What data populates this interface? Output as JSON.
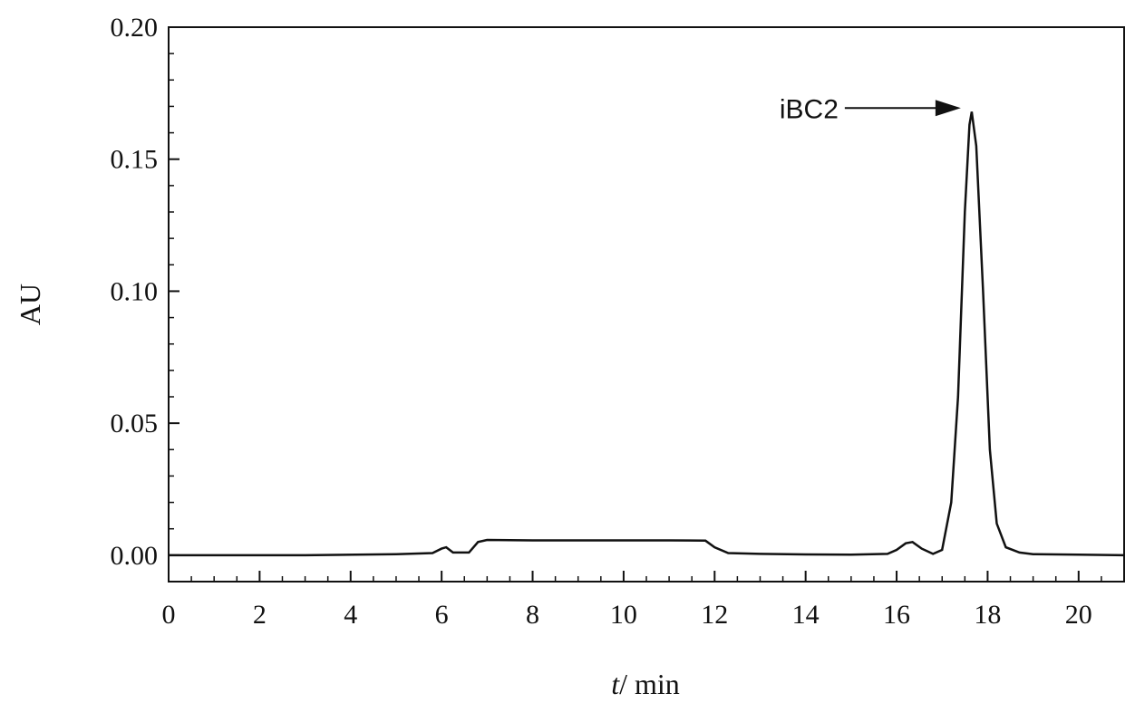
{
  "chart_data": {
    "type": "line",
    "title": "",
    "xlabel_italic": "t",
    "xlabel_rest": "/ min",
    "ylabel": "AU",
    "xlim": [
      0,
      21
    ],
    "ylim": [
      -0.01,
      0.2
    ],
    "x_ticks": [
      "0",
      "2",
      "4",
      "6",
      "8",
      "10",
      "12",
      "14",
      "16",
      "18",
      "20"
    ],
    "y_ticks": [
      "0.00",
      "0.05",
      "0.10",
      "0.15",
      "0.20"
    ],
    "grid": false,
    "legend": "none",
    "series": [
      {
        "points": [
          [
            0,
            0.0
          ],
          [
            3,
            0.0
          ],
          [
            5,
            0.0004
          ],
          [
            5.8,
            0.0008
          ],
          [
            6.0,
            0.0025
          ],
          [
            6.1,
            0.003
          ],
          [
            6.25,
            0.001
          ],
          [
            6.6,
            0.001
          ],
          [
            6.8,
            0.005
          ],
          [
            7.0,
            0.0058
          ],
          [
            8,
            0.0056
          ],
          [
            9,
            0.0056
          ],
          [
            10,
            0.0056
          ],
          [
            11,
            0.0056
          ],
          [
            11.8,
            0.0055
          ],
          [
            12.0,
            0.003
          ],
          [
            12.3,
            0.0008
          ],
          [
            13,
            0.0005
          ],
          [
            14,
            0.0003
          ],
          [
            15,
            0.0002
          ],
          [
            15.8,
            0.0005
          ],
          [
            16.0,
            0.002
          ],
          [
            16.2,
            0.0045
          ],
          [
            16.35,
            0.005
          ],
          [
            16.55,
            0.0025
          ],
          [
            16.8,
            0.0005
          ],
          [
            17.0,
            0.002
          ],
          [
            17.2,
            0.02
          ],
          [
            17.35,
            0.06
          ],
          [
            17.5,
            0.13
          ],
          [
            17.6,
            0.163
          ],
          [
            17.65,
            0.168
          ],
          [
            17.75,
            0.155
          ],
          [
            17.9,
            0.1
          ],
          [
            18.05,
            0.04
          ],
          [
            18.2,
            0.012
          ],
          [
            18.4,
            0.003
          ],
          [
            18.7,
            0.001
          ],
          [
            19,
            0.0004
          ],
          [
            20,
            0.0002
          ],
          [
            21,
            0.0
          ]
        ]
      }
    ],
    "annotations": [
      {
        "text": "iBC2",
        "x": 17.65,
        "y": 0.168
      }
    ]
  }
}
